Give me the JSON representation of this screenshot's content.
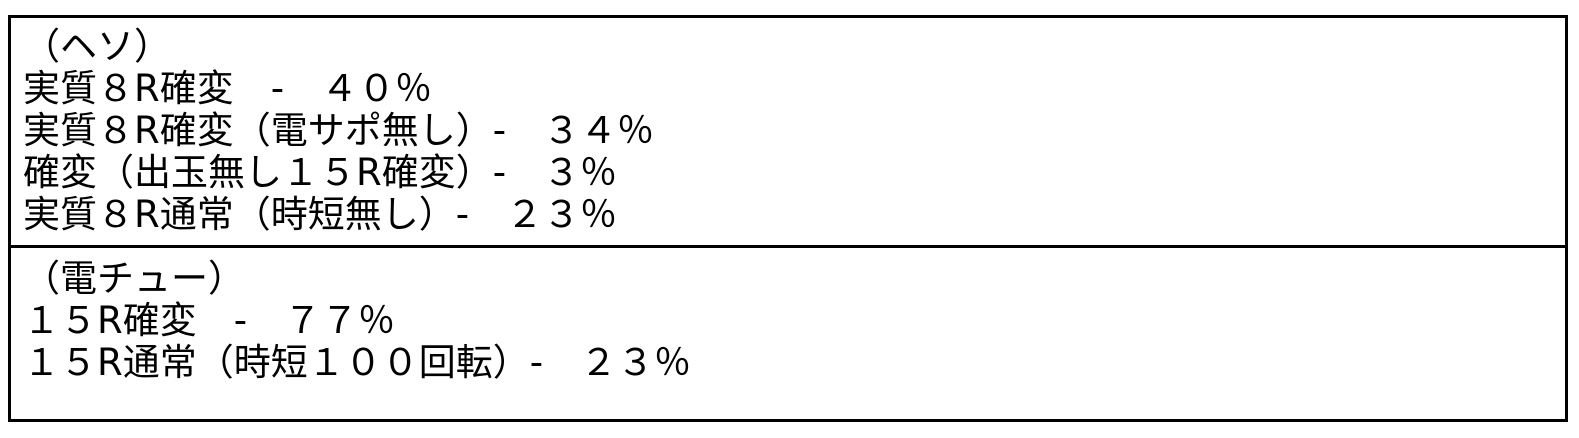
{
  "sections": [
    {
      "heading": "（ヘソ）",
      "lines": [
        "実質８R確変　-　４０％",
        "実質８R確変（電サポ無し）-　３４％",
        "確変（出玉無し１５R確変）-　３％",
        "実質８R通常（時短無し）-　２３％"
      ]
    },
    {
      "heading": "（電チュー）",
      "lines": [
        "１５R確変　-　７７％",
        "１５R通常（時短１００回転）-　２３％"
      ]
    }
  ]
}
